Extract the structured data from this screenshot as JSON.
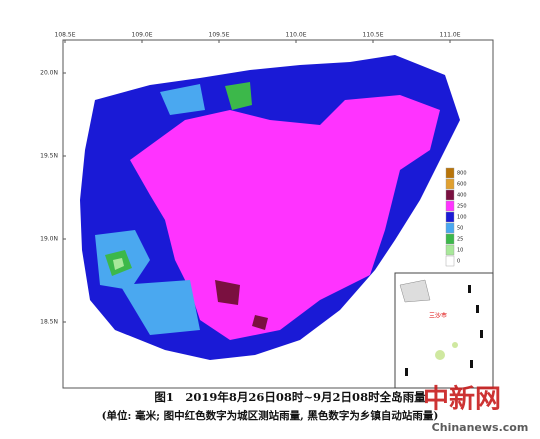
{
  "map": {
    "lon_labels": [
      "108.5E",
      "109.0E",
      "109.5E",
      "110.0E",
      "110.5E",
      "111.0E"
    ],
    "lat_labels": [
      "20.0N",
      "19.5N",
      "19.0N",
      "18.5N"
    ],
    "legend": [
      {
        "label": "800",
        "color": "#b8740a"
      },
      {
        "label": "600",
        "color": "#e0a030"
      },
      {
        "label": "400",
        "color": "#7a1040"
      },
      {
        "label": "250",
        "color": "#ff33ff"
      },
      {
        "label": "100",
        "color": "#1a1ad6"
      },
      {
        "label": "50",
        "color": "#4aa8f0"
      },
      {
        "label": "25",
        "color": "#3cb84a"
      },
      {
        "label": "10",
        "color": "#a8e89a"
      },
      {
        "label": "0",
        "color": "#ffffff"
      }
    ],
    "inset_label": "三沙市"
  },
  "caption": {
    "line1": "图1　2019年8月26日08时~9月2日08时全岛雨量",
    "line2": "(单位: 毫米; 图中红色数字为城区测站雨量, 黑色数字为乡镇自动站雨量)"
  },
  "watermark": {
    "title": "中新网",
    "site": "Chinanews.com"
  }
}
